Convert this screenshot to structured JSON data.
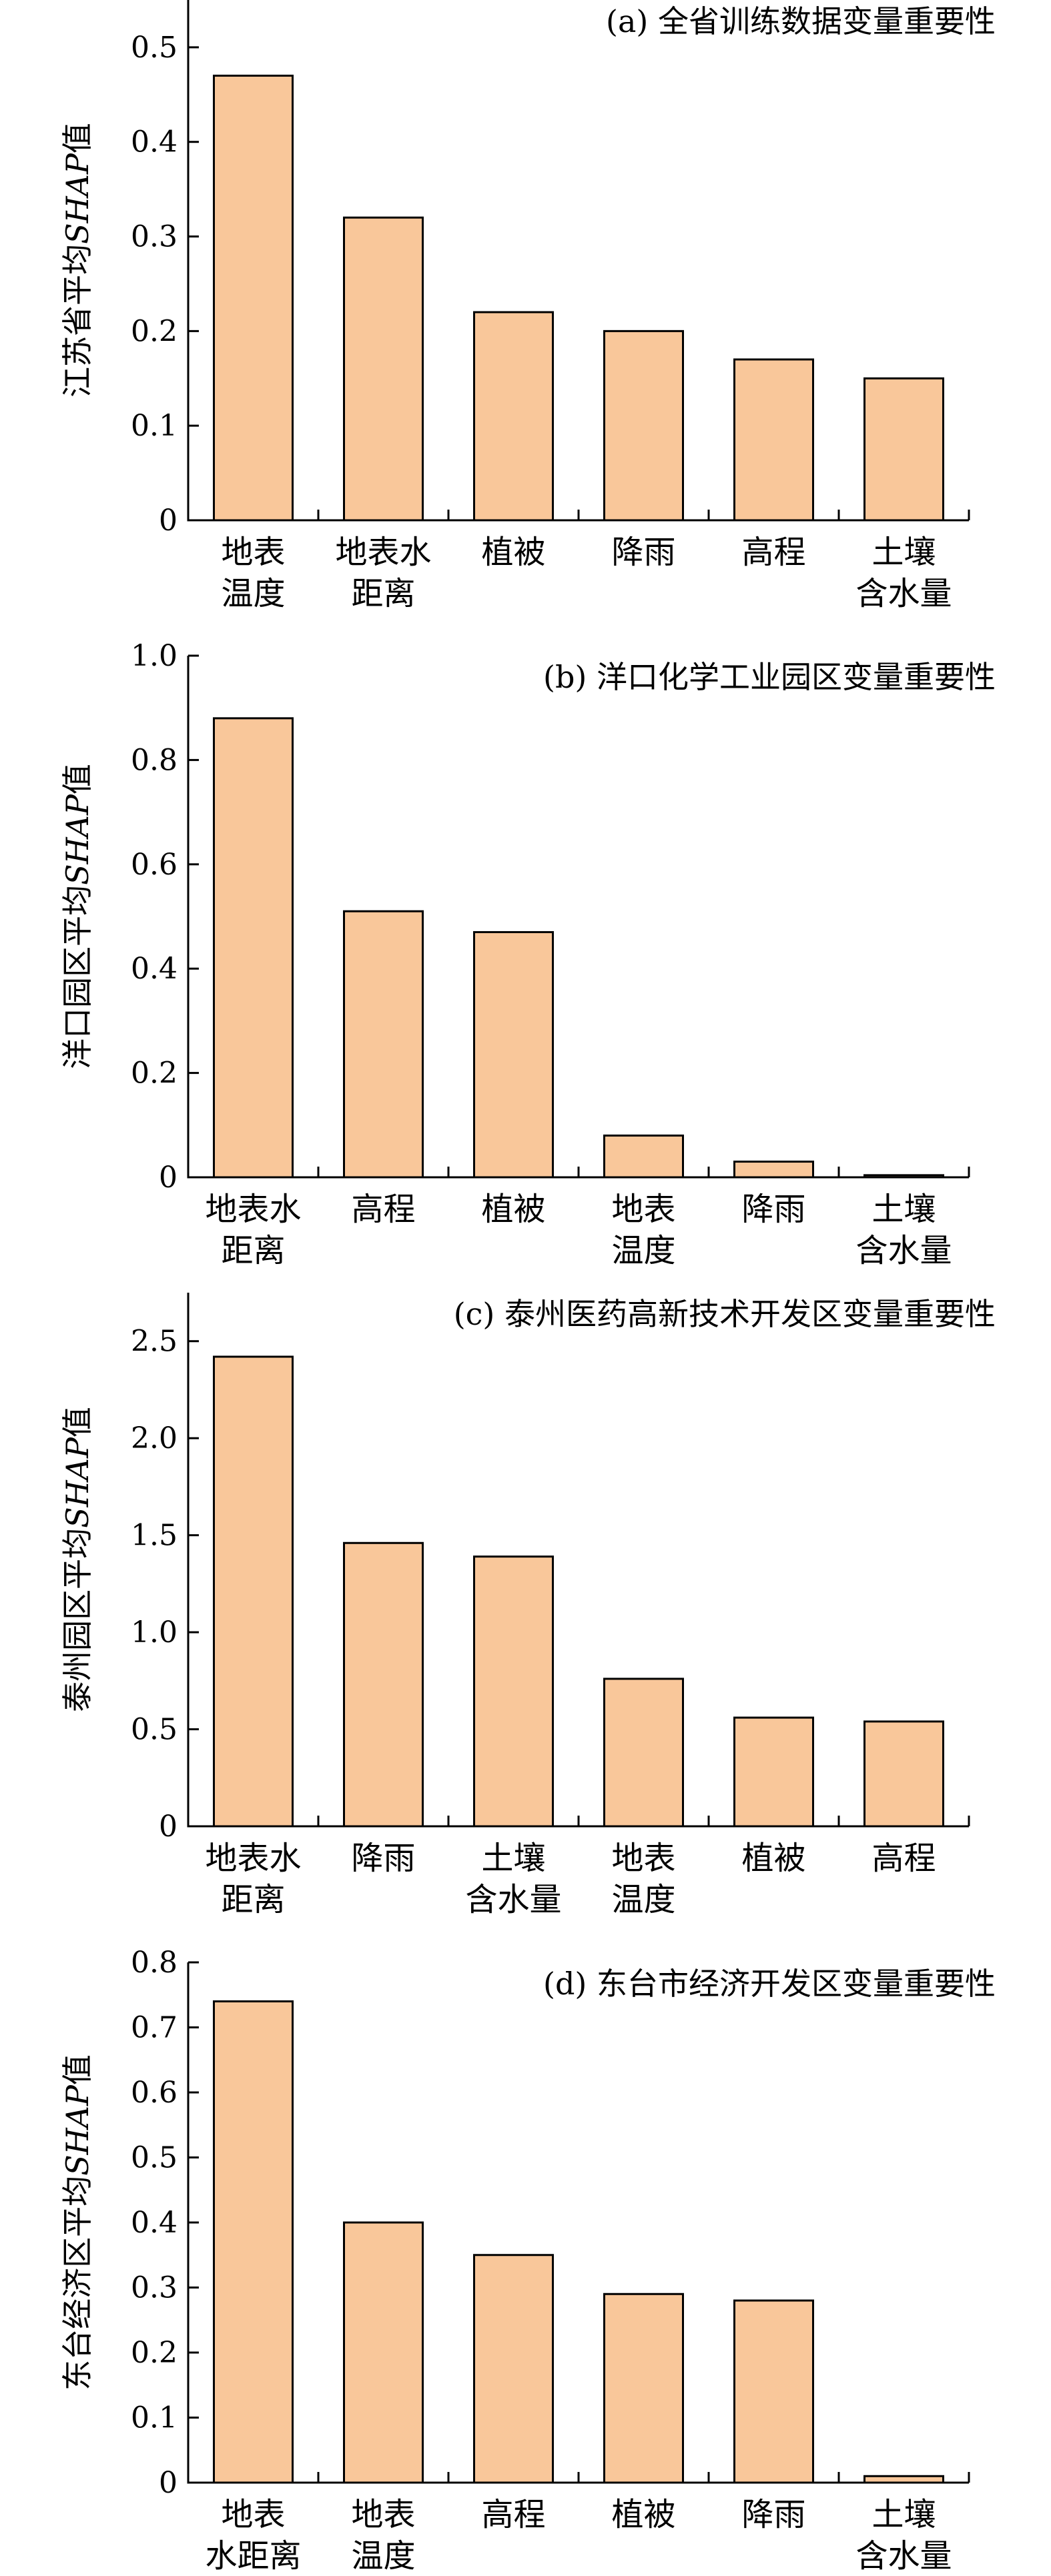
{
  "chart_data": [
    {
      "type": "bar",
      "title": "(a) 全省训练数据变量重要性",
      "ylabel": "江苏省平均SHAP值",
      "ylim": [
        0,
        0.55
      ],
      "yticks": [
        0,
        0.1,
        0.2,
        0.3,
        0.4,
        0.5
      ],
      "ytick_labels": [
        "0",
        "0.1",
        "0.2",
        "0.3",
        "0.4",
        "0.5"
      ],
      "categories": [
        [
          "地表",
          "温度"
        ],
        [
          "地表水",
          "距离"
        ],
        [
          "植被"
        ],
        [
          "降雨"
        ],
        [
          "高程"
        ],
        [
          "土壤",
          "含水量"
        ]
      ],
      "values": [
        0.47,
        0.32,
        0.22,
        0.2,
        0.17,
        0.15
      ],
      "bar_color": "#f9c79a",
      "grid": false
    },
    {
      "type": "bar",
      "title": "(b) 洋口化学工业园区变量重要性",
      "ylabel": "洋口园区平均SHAP值",
      "ylim": [
        0,
        1.0
      ],
      "yticks": [
        0,
        0.2,
        0.4,
        0.6,
        0.8,
        1.0
      ],
      "ytick_labels": [
        "0",
        "0.2",
        "0.4",
        "0.6",
        "0.8",
        "1.0"
      ],
      "categories": [
        [
          "地表水",
          "距离"
        ],
        [
          "高程"
        ],
        [
          "植被"
        ],
        [
          "地表",
          "温度"
        ],
        [
          "降雨"
        ],
        [
          "土壤",
          "含水量"
        ]
      ],
      "values": [
        0.88,
        0.51,
        0.47,
        0.08,
        0.03,
        0.004
      ],
      "bar_color": "#f9c79a",
      "grid": false
    },
    {
      "type": "bar",
      "title": "(c) 泰州医药高新技术开发区变量重要性",
      "ylabel": "泰州园区平均SHAP值",
      "ylim": [
        0,
        2.75
      ],
      "yticks": [
        0,
        0.5,
        1.0,
        1.5,
        2.0,
        2.5
      ],
      "ytick_labels": [
        "0",
        "0.5",
        "1.0",
        "1.5",
        "2.0",
        "2.5"
      ],
      "categories": [
        [
          "地表水",
          "距离"
        ],
        [
          "降雨"
        ],
        [
          "土壤",
          "含水量"
        ],
        [
          "地表",
          "温度"
        ],
        [
          "植被"
        ],
        [
          "高程"
        ]
      ],
      "values": [
        2.42,
        1.46,
        1.39,
        0.76,
        0.56,
        0.54
      ],
      "bar_color": "#f9c79a",
      "grid": false
    },
    {
      "type": "bar",
      "title": "(d) 东台市经济开发区变量重要性",
      "ylabel": "东台经济区平均SHAP值",
      "ylim": [
        0,
        0.8
      ],
      "yticks": [
        0,
        0.1,
        0.2,
        0.3,
        0.4,
        0.5,
        0.6,
        0.7,
        0.8
      ],
      "ytick_labels": [
        "0",
        "0.1",
        "0.2",
        "0.3",
        "0.4",
        "0.5",
        "0.6",
        "0.7",
        "0.8"
      ],
      "categories": [
        [
          "地表",
          "水距离"
        ],
        [
          "地表",
          "温度"
        ],
        [
          "高程"
        ],
        [
          "植被"
        ],
        [
          "降雨"
        ],
        [
          "土壤",
          "含水量"
        ]
      ],
      "values": [
        0.74,
        0.4,
        0.35,
        0.29,
        0.28,
        0.01
      ],
      "bar_color": "#f9c79a",
      "grid": false
    }
  ]
}
